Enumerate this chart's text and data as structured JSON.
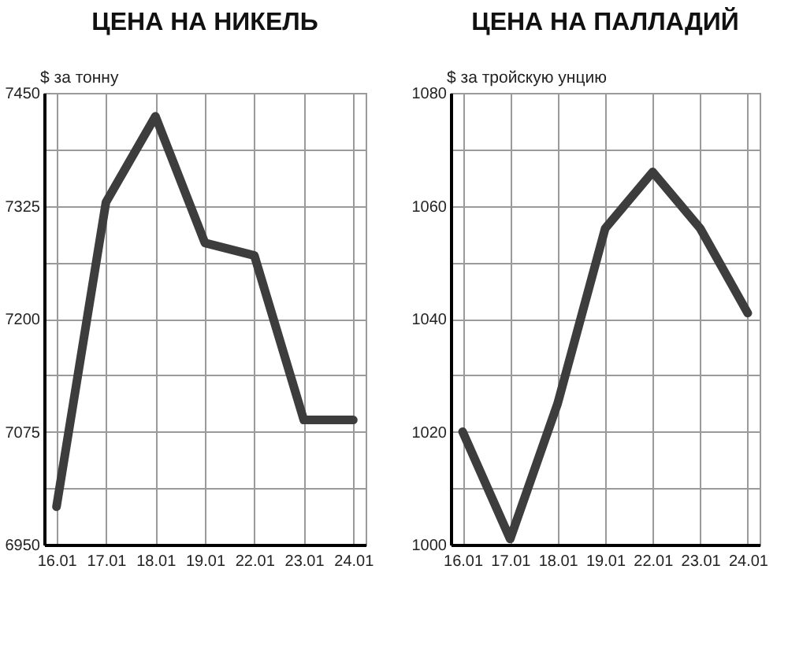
{
  "chart_data": [
    {
      "type": "line",
      "title": "ЦЕНА НА НИКЕЛЬ",
      "ylabel": "$ за тонну",
      "categories": [
        "16.01",
        "17.01",
        "18.01",
        "19.01",
        "22.01",
        "23.01",
        "24.01"
      ],
      "values": [
        6992,
        7329,
        7424,
        7284,
        7270,
        7088,
        7088
      ],
      "color": "#3d3d3d",
      "line_style": "solid",
      "ylim": [
        6950,
        7450
      ],
      "yticks": [
        6950,
        {
          "value": 7012.5,
          "label": null
        },
        7075,
        {
          "value": 7137.5,
          "label": null
        },
        7200,
        {
          "value": 7262.5,
          "label": null
        },
        7325,
        {
          "value": 7387.5,
          "label": null
        },
        7450
      ],
      "grid": true
    },
    {
      "type": "line",
      "title": "ЦЕНА НА ПАЛЛАДИЙ",
      "ylabel": "$ за тройскую унцию",
      "categories": [
        "16.01",
        "17.01",
        "18.01",
        "19.01",
        "22.01",
        "23.01",
        "24.01"
      ],
      "values": [
        1020,
        1001,
        1025,
        1056,
        1066,
        1056,
        1041
      ],
      "color": "#3d3d3d",
      "line_style": "solid",
      "ylim": [
        1000,
        1080
      ],
      "yticks": [
        1000,
        {
          "value": 1010,
          "label": null
        },
        1020,
        {
          "value": 1030,
          "label": null
        },
        1040,
        {
          "value": 1050,
          "label": null
        },
        1060,
        {
          "value": 1070,
          "label": null
        },
        1080
      ],
      "grid": true
    }
  ]
}
